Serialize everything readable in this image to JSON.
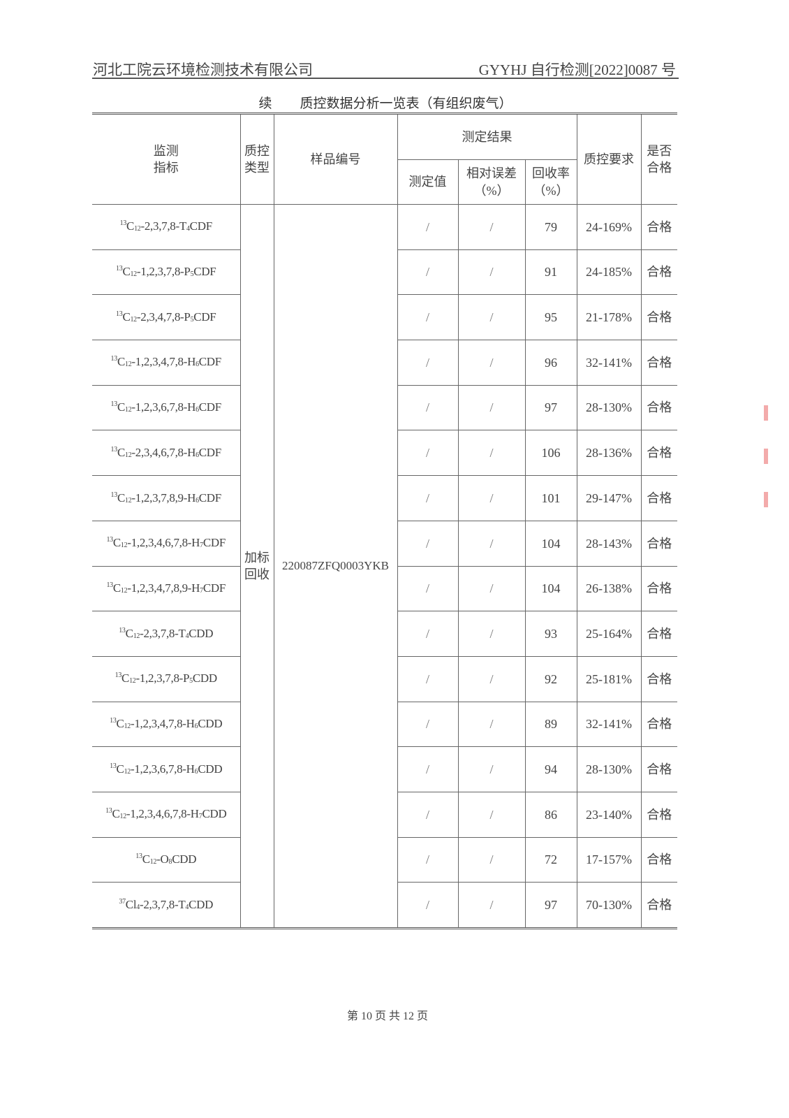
{
  "header": {
    "company": "河北工院云环境检测技术有限公司",
    "report_no": "GYYHJ 自行检测[2022]0087 号"
  },
  "table_title": {
    "prefix": "续",
    "text": "质控数据分析一览表（有组织废气）"
  },
  "columns": {
    "indicator": "监测\n指标",
    "qc_type": "质控\n类型",
    "sample_no": "样品编号",
    "results": "测定结果",
    "measured": "测定值",
    "rel_error": "相对误差\n（%）",
    "recovery": "回收率\n（%）",
    "qc_req": "质控要求",
    "pass": "是否\n合格"
  },
  "qc_type": "加标\n回收",
  "sample_no": "220087ZFQ0003YKB",
  "rows": [
    {
      "analyte": [
        "13",
        "C",
        "12",
        "-2,3,7,8-T",
        "4",
        "CDF"
      ],
      "measured": "/",
      "rel_error": "/",
      "recovery": "79",
      "requirement": "24-169%",
      "pass": "合格"
    },
    {
      "analyte": [
        "13",
        "C",
        "12",
        "-1,2,3,7,8-P",
        "5",
        "CDF"
      ],
      "measured": "/",
      "rel_error": "/",
      "recovery": "91",
      "requirement": "24-185%",
      "pass": "合格"
    },
    {
      "analyte": [
        "13",
        "C",
        "12",
        "-2,3,4,7,8-P",
        "5",
        "CDF"
      ],
      "measured": "/",
      "rel_error": "/",
      "recovery": "95",
      "requirement": "21-178%",
      "pass": "合格"
    },
    {
      "analyte": [
        "13",
        "C",
        "12",
        "-1,2,3,4,7,8-H",
        "6",
        "CDF"
      ],
      "measured": "/",
      "rel_error": "/",
      "recovery": "96",
      "requirement": "32-141%",
      "pass": "合格"
    },
    {
      "analyte": [
        "13",
        "C",
        "12",
        "-1,2,3,6,7,8-H",
        "6",
        "CDF"
      ],
      "measured": "/",
      "rel_error": "/",
      "recovery": "97",
      "requirement": "28-130%",
      "pass": "合格"
    },
    {
      "analyte": [
        "13",
        "C",
        "12",
        "-2,3,4,6,7,8-H",
        "6",
        "CDF"
      ],
      "measured": "/",
      "rel_error": "/",
      "recovery": "106",
      "requirement": "28-136%",
      "pass": "合格"
    },
    {
      "analyte": [
        "13",
        "C",
        "12",
        "-1,2,3,7,8,9-H",
        "6",
        "CDF"
      ],
      "measured": "/",
      "rel_error": "/",
      "recovery": "101",
      "requirement": "29-147%",
      "pass": "合格"
    },
    {
      "analyte": [
        "13",
        "C",
        "12",
        "-1,2,3,4,6,7,8-H",
        "7",
        "CDF"
      ],
      "measured": "/",
      "rel_error": "/",
      "recovery": "104",
      "requirement": "28-143%",
      "pass": "合格"
    },
    {
      "analyte": [
        "13",
        "C",
        "12",
        "-1,2,3,4,7,8,9-H",
        "7",
        "CDF"
      ],
      "measured": "/",
      "rel_error": "/",
      "recovery": "104",
      "requirement": "26-138%",
      "pass": "合格"
    },
    {
      "analyte": [
        "13",
        "C",
        "12",
        "-2,3,7,8-T",
        "4",
        "CDD"
      ],
      "measured": "/",
      "rel_error": "/",
      "recovery": "93",
      "requirement": "25-164%",
      "pass": "合格"
    },
    {
      "analyte": [
        "13",
        "C",
        "12",
        "-1,2,3,7,8-P",
        "5",
        "CDD"
      ],
      "measured": "/",
      "rel_error": "/",
      "recovery": "92",
      "requirement": "25-181%",
      "pass": "合格"
    },
    {
      "analyte": [
        "13",
        "C",
        "12",
        "-1,2,3,4,7,8-H",
        "6",
        "CDD"
      ],
      "measured": "/",
      "rel_error": "/",
      "recovery": "89",
      "requirement": "32-141%",
      "pass": "合格"
    },
    {
      "analyte": [
        "13",
        "C",
        "12",
        "-1,2,3,6,7,8-H",
        "6",
        "CDD"
      ],
      "measured": "/",
      "rel_error": "/",
      "recovery": "94",
      "requirement": "28-130%",
      "pass": "合格"
    },
    {
      "analyte": [
        "13",
        "C",
        "12",
        "-1,2,3,4,6,7,8-H",
        "7",
        "CDD"
      ],
      "measured": "/",
      "rel_error": "/",
      "recovery": "86",
      "requirement": "23-140%",
      "pass": "合格"
    },
    {
      "analyte": [
        "13",
        "C",
        "12",
        "-O",
        "8",
        "CDD"
      ],
      "measured": "/",
      "rel_error": "/",
      "recovery": "72",
      "requirement": "17-157%",
      "pass": "合格"
    },
    {
      "analyte": [
        "37",
        "Cl",
        "4",
        "-2,3,7,8-T",
        "4",
        "CDD"
      ],
      "measured": "/",
      "rel_error": "/",
      "recovery": "97",
      "requirement": "70-130%",
      "pass": "合格"
    }
  ],
  "footer": "第 10 页 共 12 页"
}
